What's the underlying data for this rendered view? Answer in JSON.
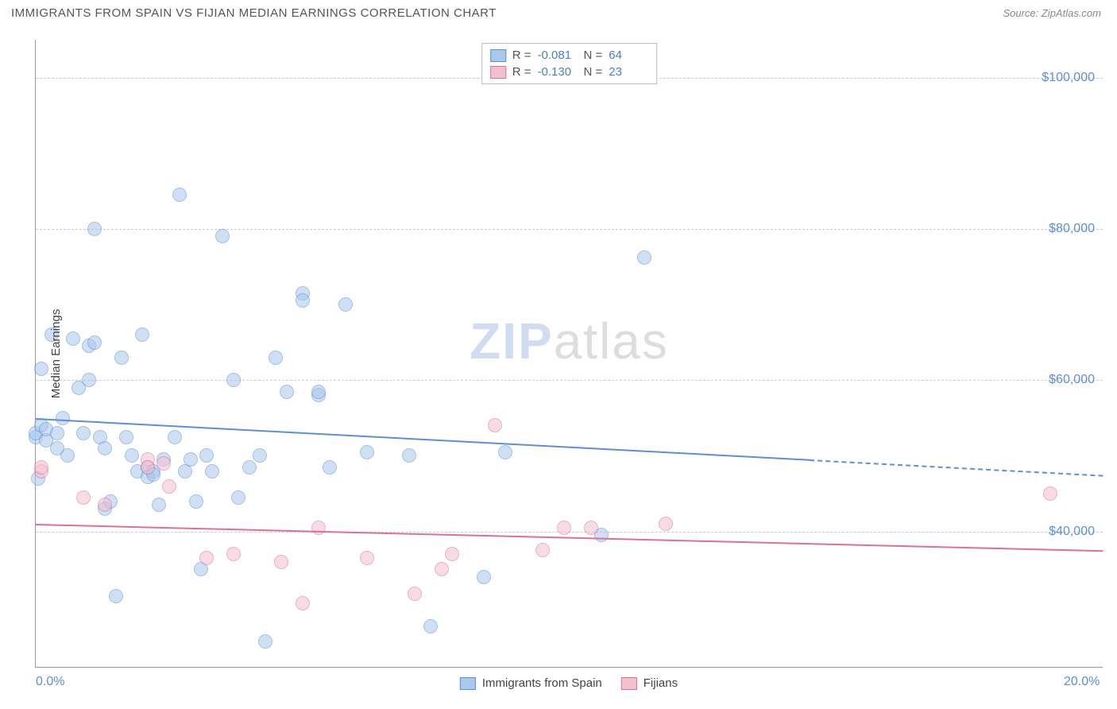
{
  "header": {
    "title": "IMMIGRANTS FROM SPAIN VS FIJIAN MEDIAN EARNINGS CORRELATION CHART",
    "source_prefix": "Source: ",
    "source_name": "ZipAtlas.com"
  },
  "watermark": {
    "zip": "ZIP",
    "atlas": "atlas"
  },
  "chart": {
    "type": "scatter",
    "background_color": "#ffffff",
    "grid_color": "#cccccc",
    "axis_color": "#999999",
    "tick_color": "#5b8fd6",
    "y_axis_label": "Median Earnings",
    "xlim": [
      0,
      20
    ],
    "ylim": [
      22000,
      105000
    ],
    "x_ticks": [
      {
        "value": 0,
        "label": "0.0%"
      },
      {
        "value": 20,
        "label": "20.0%"
      }
    ],
    "y_ticks": [
      {
        "value": 40000,
        "label": "$40,000"
      },
      {
        "value": 60000,
        "label": "$60,000"
      },
      {
        "value": 80000,
        "label": "$80,000"
      },
      {
        "value": 100000,
        "label": "$100,000"
      }
    ],
    "series": [
      {
        "name": "Immigrants from Spain",
        "fill_color": "#a9c8ec",
        "stroke_color": "#5b8fd6",
        "marker_radius": 9,
        "fill_opacity": 0.55,
        "stats": {
          "R": "-0.081",
          "N": "64"
        },
        "trend": {
          "y_at_x0": 55000,
          "y_at_xmax": 47500,
          "solid_end_x": 14.5
        },
        "points": [
          [
            0.0,
            52500
          ],
          [
            0.0,
            53000
          ],
          [
            0.05,
            47000
          ],
          [
            0.1,
            61500
          ],
          [
            0.1,
            54000
          ],
          [
            0.2,
            52000
          ],
          [
            0.2,
            53500
          ],
          [
            0.3,
            66000
          ],
          [
            0.4,
            53000
          ],
          [
            0.4,
            51000
          ],
          [
            0.5,
            55000
          ],
          [
            0.6,
            50000
          ],
          [
            0.7,
            65500
          ],
          [
            0.8,
            59000
          ],
          [
            0.9,
            53000
          ],
          [
            1.0,
            60000
          ],
          [
            1.0,
            64500
          ],
          [
            1.1,
            80000
          ],
          [
            1.1,
            65000
          ],
          [
            1.2,
            52500
          ],
          [
            1.3,
            51000
          ],
          [
            1.3,
            43000
          ],
          [
            1.4,
            44000
          ],
          [
            1.5,
            31500
          ],
          [
            1.6,
            63000
          ],
          [
            1.7,
            52500
          ],
          [
            1.8,
            50000
          ],
          [
            1.9,
            48000
          ],
          [
            2.0,
            66000
          ],
          [
            2.1,
            48500
          ],
          [
            2.1,
            47200
          ],
          [
            2.2,
            48000
          ],
          [
            2.2,
            47500
          ],
          [
            2.3,
            43500
          ],
          [
            2.4,
            49500
          ],
          [
            2.6,
            52500
          ],
          [
            2.7,
            84500
          ],
          [
            2.8,
            48000
          ],
          [
            2.9,
            49500
          ],
          [
            3.0,
            44000
          ],
          [
            3.1,
            35000
          ],
          [
            3.2,
            50000
          ],
          [
            3.3,
            48000
          ],
          [
            3.5,
            79000
          ],
          [
            3.7,
            60000
          ],
          [
            3.8,
            44500
          ],
          [
            4.0,
            48500
          ],
          [
            4.2,
            50000
          ],
          [
            4.3,
            25500
          ],
          [
            4.5,
            63000
          ],
          [
            4.7,
            58500
          ],
          [
            5.0,
            71500
          ],
          [
            5.0,
            70500
          ],
          [
            5.3,
            58000
          ],
          [
            5.3,
            58500
          ],
          [
            5.5,
            48500
          ],
          [
            5.8,
            70000
          ],
          [
            6.2,
            50500
          ],
          [
            7.0,
            50000
          ],
          [
            7.4,
            27500
          ],
          [
            8.4,
            34000
          ],
          [
            8.8,
            50500
          ],
          [
            10.6,
            39500
          ],
          [
            11.4,
            76200
          ]
        ]
      },
      {
        "name": "Fijians",
        "fill_color": "#f3c0d0",
        "stroke_color": "#e07090",
        "marker_radius": 9,
        "fill_opacity": 0.55,
        "stats": {
          "R": "-0.130",
          "N": "23"
        },
        "trend": {
          "y_at_x0": 41000,
          "y_at_xmax": 37500,
          "solid_end_x": 20
        },
        "points": [
          [
            0.1,
            48000
          ],
          [
            0.1,
            48500
          ],
          [
            0.9,
            44500
          ],
          [
            1.3,
            43500
          ],
          [
            2.1,
            49500
          ],
          [
            2.1,
            48500
          ],
          [
            2.4,
            49000
          ],
          [
            2.5,
            46000
          ],
          [
            3.2,
            36500
          ],
          [
            3.7,
            37000
          ],
          [
            4.6,
            36000
          ],
          [
            5.0,
            30500
          ],
          [
            5.3,
            40500
          ],
          [
            6.2,
            36500
          ],
          [
            7.1,
            31800
          ],
          [
            7.6,
            35000
          ],
          [
            7.8,
            37000
          ],
          [
            8.6,
            54000
          ],
          [
            9.5,
            37500
          ],
          [
            9.9,
            40500
          ],
          [
            10.4,
            40500
          ],
          [
            11.8,
            41000
          ],
          [
            19.0,
            45000
          ]
        ]
      }
    ],
    "stat_labels": {
      "R": "R =",
      "N": "N ="
    }
  }
}
